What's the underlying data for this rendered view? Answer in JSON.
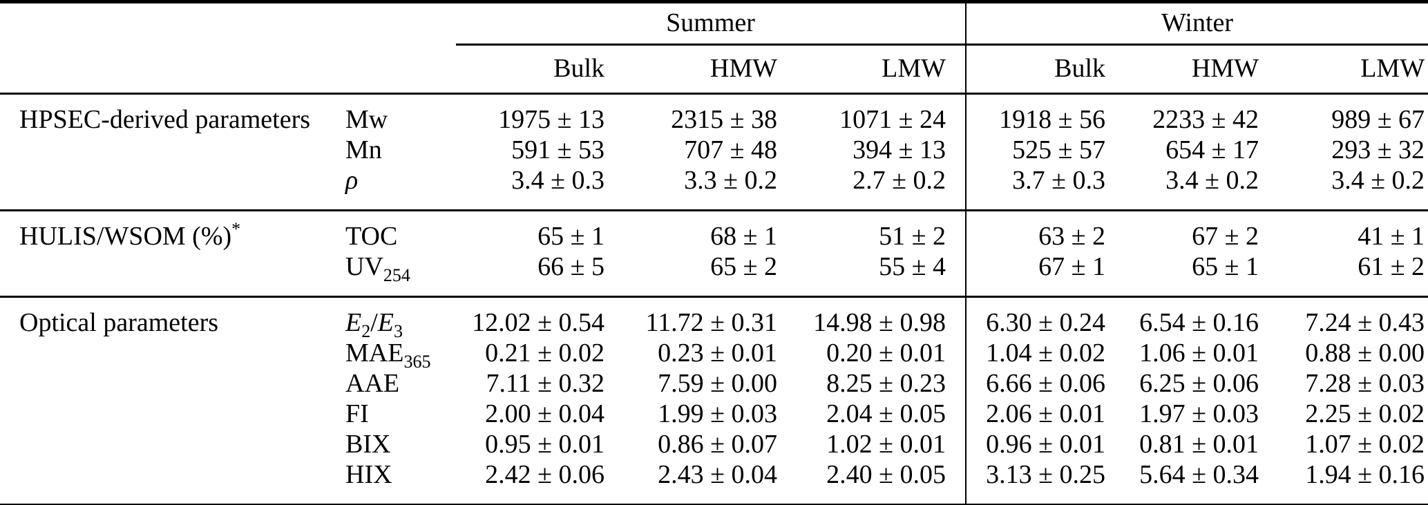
{
  "colors": {
    "text": "#000000",
    "rule": "#000000",
    "background": "#ffffff"
  },
  "table": {
    "col_groups": [
      {
        "label": "Summer",
        "columns": [
          "Bulk",
          "HMW",
          "LMW"
        ]
      },
      {
        "label": "Winter",
        "columns": [
          "Bulk",
          "HMW",
          "LMW"
        ]
      }
    ],
    "sections": [
      {
        "label_parts": [
          {
            "text": "HPSEC-derived parameters"
          }
        ],
        "rows": [
          {
            "param_parts": [
              {
                "text": "Mw"
              }
            ],
            "values": [
              "1975 ± 13",
              "2315 ± 38",
              "1071 ± 24",
              "1918 ± 56",
              "2233 ± 42",
              "989 ± 67"
            ]
          },
          {
            "param_parts": [
              {
                "text": "Mn"
              }
            ],
            "values": [
              "591 ± 53",
              "707 ± 48",
              "394 ± 13",
              "525 ± 57",
              "654 ± 17",
              "293 ± 32"
            ]
          },
          {
            "param_parts": [
              {
                "text": "ρ",
                "italic": true
              }
            ],
            "values": [
              "3.4 ± 0.3",
              "3.3 ± 0.2",
              "2.7 ± 0.2",
              "3.7 ± 0.3",
              "3.4 ± 0.2",
              "3.4 ± 0.2"
            ]
          }
        ]
      },
      {
        "label_parts": [
          {
            "text": "HULIS/WSOM (%)"
          },
          {
            "text": "*",
            "sup": true
          }
        ],
        "rows": [
          {
            "param_parts": [
              {
                "text": "TOC"
              }
            ],
            "values": [
              "65 ± 1",
              "68 ± 1",
              "51 ± 2",
              "63 ± 2",
              "67 ± 2",
              "41 ± 1"
            ]
          },
          {
            "param_parts": [
              {
                "text": "UV"
              },
              {
                "text": "254",
                "sub": true
              }
            ],
            "values": [
              "66 ± 5",
              "65 ± 2",
              "55 ± 4",
              "67 ± 1",
              "65 ± 1",
              "61 ± 2"
            ]
          }
        ]
      },
      {
        "label_parts": [
          {
            "text": "Optical parameters"
          }
        ],
        "rows": [
          {
            "param_parts": [
              {
                "text": "E",
                "italic": true
              },
              {
                "text": "2",
                "sub": true
              },
              {
                "text": "/"
              },
              {
                "text": "E",
                "italic": true
              },
              {
                "text": "3",
                "sub": true
              }
            ],
            "values": [
              "12.02 ± 0.54",
              "11.72 ± 0.31",
              "14.98 ± 0.98",
              "6.30 ± 0.24",
              "6.54 ± 0.16",
              "7.24 ± 0.43"
            ]
          },
          {
            "param_parts": [
              {
                "text": "MAE"
              },
              {
                "text": "365",
                "sub": true
              }
            ],
            "values": [
              "0.21 ± 0.02",
              "0.23 ± 0.01",
              "0.20 ± 0.01",
              "1.04 ± 0.02",
              "1.06 ± 0.01",
              "0.88 ± 0.00"
            ]
          },
          {
            "param_parts": [
              {
                "text": "AAE"
              }
            ],
            "values": [
              "7.11 ± 0.32",
              "7.59 ± 0.00",
              "8.25 ± 0.23",
              "6.66 ± 0.06",
              "6.25 ± 0.06",
              "7.28 ± 0.03"
            ]
          },
          {
            "param_parts": [
              {
                "text": "FI"
              }
            ],
            "values": [
              "2.00 ± 0.04",
              "1.99 ± 0.03",
              "2.04 ± 0.05",
              "2.06 ± 0.01",
              "1.97 ± 0.03",
              "2.25 ± 0.02"
            ]
          },
          {
            "param_parts": [
              {
                "text": "BIX"
              }
            ],
            "values": [
              "0.95 ± 0.01",
              "0.86 ± 0.07",
              "1.02 ± 0.01",
              "0.96 ± 0.01",
              "0.81 ± 0.01",
              "1.07 ± 0.02"
            ]
          },
          {
            "param_parts": [
              {
                "text": "HIX"
              }
            ],
            "values": [
              "2.42 ± 0.06",
              "2.43 ± 0.04",
              "2.40 ± 0.05",
              "3.13 ± 0.25",
              "5.64 ± 0.34",
              "1.94 ± 0.16"
            ]
          }
        ]
      }
    ]
  }
}
